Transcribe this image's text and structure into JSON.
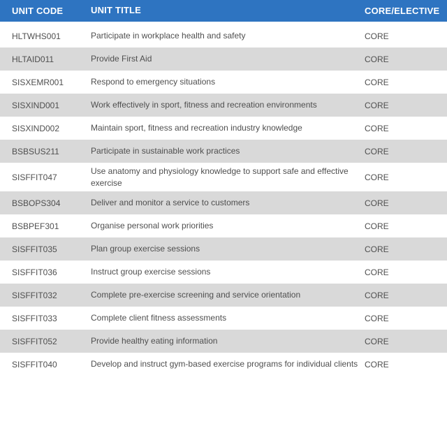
{
  "colors": {
    "header_bg": "#2E74C1",
    "header_text": "#FFFFFF",
    "stripe": "#D9D9D9",
    "body_text": "#4F4F4F"
  },
  "table": {
    "columns": [
      "UNIT CODE",
      "UNIT TITLE",
      "CORE/ELECTIVE"
    ],
    "rows": [
      {
        "code": "HLTWHS001",
        "title": "Participate in workplace health and safety",
        "type": "CORE"
      },
      {
        "code": "HLTAID011",
        "title": "Provide First Aid",
        "type": "CORE"
      },
      {
        "code": "SISXEMR001",
        "title": "Respond to emergency situations",
        "type": "CORE"
      },
      {
        "code": "SISXIND001",
        "title": "Work effectively in sport, fitness and recreation environments",
        "type": "CORE"
      },
      {
        "code": "SISXIND002",
        "title": "Maintain sport, fitness and recreation industry knowledge",
        "type": "CORE"
      },
      {
        "code": "BSBSUS211",
        "title": "Participate in sustainable work practices",
        "type": "CORE"
      },
      {
        "code": "SISFFIT047",
        "title": "Use anatomy and physiology knowledge to support safe and effective exercise",
        "type": "CORE"
      },
      {
        "code": "BSBOPS304",
        "title": "Deliver and monitor a service to customers",
        "type": "CORE"
      },
      {
        "code": "BSBPEF301",
        "title": "Organise personal work priorities",
        "type": "CORE"
      },
      {
        "code": "SISFFIT035",
        "title": "Plan group exercise sessions",
        "type": "CORE"
      },
      {
        "code": "SISFFIT036",
        "title": "Instruct group exercise sessions",
        "type": "CORE"
      },
      {
        "code": "SISFFIT032",
        "title": "Complete pre-exercise screening and service orientation",
        "type": "CORE"
      },
      {
        "code": "SISFFIT033",
        "title": "Complete client fitness assessments",
        "type": "CORE"
      },
      {
        "code": "SISFFIT052",
        "title": "Provide healthy eating information",
        "type": "CORE"
      },
      {
        "code": "SISFFIT040",
        "title": "Develop and instruct gym-based exercise programs for individual clients",
        "type": "CORE"
      }
    ]
  }
}
